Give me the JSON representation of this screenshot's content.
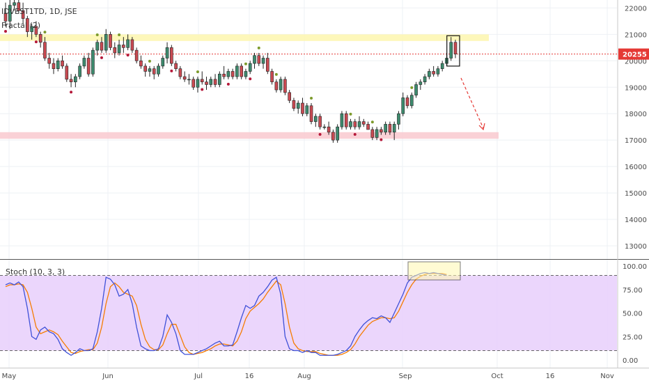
{
  "chart_data": [
    {
      "type": "candlestick",
      "title": "IDVEST1TD, 1D, JSE",
      "indicator_label": "Fractal (2)",
      "last_price": "20255",
      "y_axis": {
        "ylim": [
          12500,
          22300
        ],
        "ticks": [
          "22000",
          "21000",
          "20000",
          "19000",
          "18000",
          "17000",
          "16000",
          "15000",
          "14000",
          "13000"
        ]
      },
      "x_axis": {
        "ticks": [
          "May",
          "Jun",
          "Jul",
          "16",
          "Aug",
          "Sep",
          "Oct",
          "16",
          "Nov"
        ]
      },
      "resistance_zone": [
        20750,
        21000
      ],
      "support_zone": [
        17050,
        17300
      ],
      "price_line": 20255,
      "ohlc": [
        [
          21800,
          22200,
          21300,
          21500
        ],
        [
          21500,
          22300,
          21200,
          22100
        ],
        [
          22100,
          22400,
          21900,
          22200
        ],
        [
          22200,
          22300,
          21800,
          21900
        ],
        [
          21900,
          22200,
          21400,
          21600
        ],
        [
          21600,
          21700,
          20900,
          21100
        ],
        [
          21100,
          21400,
          20800,
          21300
        ],
        [
          21300,
          21500,
          20900,
          21000
        ],
        [
          21000,
          21100,
          20500,
          20700
        ],
        [
          20700,
          20900,
          20000,
          20100
        ],
        [
          20100,
          20300,
          19700,
          19900
        ],
        [
          19900,
          20100,
          19500,
          19700
        ],
        [
          19700,
          20100,
          19600,
          20000
        ],
        [
          20000,
          20200,
          19700,
          19800
        ],
        [
          19800,
          19900,
          19200,
          19300
        ],
        [
          19300,
          19500,
          19000,
          19200
        ],
        [
          19200,
          19500,
          19000,
          19400
        ],
        [
          19400,
          19900,
          19300,
          19800
        ],
        [
          19800,
          20200,
          19700,
          20100
        ],
        [
          20100,
          20300,
          19400,
          19500
        ],
        [
          19500,
          20500,
          19400,
          20400
        ],
        [
          20400,
          20800,
          20200,
          20700
        ],
        [
          20700,
          20900,
          20300,
          20400
        ],
        [
          20400,
          21200,
          20300,
          21000
        ],
        [
          21000,
          21100,
          20400,
          20500
        ],
        [
          20500,
          20700,
          20100,
          20300
        ],
        [
          20300,
          20800,
          20200,
          20600
        ],
        [
          20600,
          20900,
          20300,
          20500
        ],
        [
          20500,
          21000,
          20400,
          20800
        ],
        [
          20800,
          20900,
          20300,
          20400
        ],
        [
          20400,
          20500,
          19900,
          20000
        ],
        [
          20000,
          20200,
          19700,
          19800
        ],
        [
          19800,
          19900,
          19400,
          19600
        ],
        [
          19600,
          19800,
          19400,
          19700
        ],
        [
          19700,
          19800,
          19300,
          19500
        ],
        [
          19500,
          19900,
          19400,
          19800
        ],
        [
          19800,
          20200,
          19700,
          20100
        ],
        [
          20100,
          20700,
          19900,
          20500
        ],
        [
          20500,
          20600,
          19800,
          19900
        ],
        [
          19900,
          20000,
          19600,
          19700
        ],
        [
          19700,
          19800,
          19300,
          19400
        ],
        [
          19400,
          19600,
          19200,
          19300
        ],
        [
          19300,
          19500,
          19100,
          19300
        ],
        [
          19300,
          19400,
          18900,
          19000
        ],
        [
          19000,
          19400,
          18800,
          19300
        ],
        [
          19300,
          19600,
          19100,
          19200
        ],
        [
          19200,
          19400,
          18900,
          19100
        ],
        [
          19100,
          19400,
          19000,
          19300
        ],
        [
          19300,
          19500,
          19000,
          19100
        ],
        [
          19100,
          19600,
          19000,
          19500
        ],
        [
          19500,
          19800,
          19300,
          19400
        ],
        [
          19400,
          19700,
          19300,
          19600
        ],
        [
          19600,
          19700,
          19300,
          19400
        ],
        [
          19400,
          19900,
          19300,
          19800
        ],
        [
          19800,
          19900,
          19300,
          19400
        ],
        [
          19400,
          19700,
          19300,
          19600
        ],
        [
          19600,
          20000,
          19500,
          19900
        ],
        [
          19900,
          20300,
          19700,
          20200
        ],
        [
          20200,
          20300,
          19800,
          19900
        ],
        [
          19900,
          20200,
          19700,
          20100
        ],
        [
          20100,
          20300,
          19500,
          19600
        ],
        [
          19600,
          19700,
          19100,
          19200
        ],
        [
          19200,
          19300,
          18800,
          18900
        ],
        [
          18900,
          19400,
          18800,
          19300
        ],
        [
          19300,
          19400,
          18700,
          18800
        ],
        [
          18800,
          18900,
          18400,
          18500
        ],
        [
          18500,
          18600,
          18100,
          18200
        ],
        [
          18200,
          18500,
          18000,
          18400
        ],
        [
          18400,
          18600,
          17900,
          18000
        ],
        [
          18000,
          18400,
          17900,
          18300
        ],
        [
          18300,
          18400,
          17600,
          17700
        ],
        [
          17700,
          18000,
          17500,
          17900
        ],
        [
          17900,
          18000,
          17400,
          17500
        ],
        [
          17500,
          17600,
          17400,
          17500
        ],
        [
          17500,
          17700,
          17200,
          17300
        ],
        [
          17300,
          17400,
          16900,
          17000
        ],
        [
          17000,
          17600,
          16900,
          17500
        ],
        [
          17500,
          18100,
          17400,
          18000
        ],
        [
          18000,
          18100,
          17400,
          17500
        ],
        [
          17500,
          17800,
          17400,
          17700
        ],
        [
          17700,
          17800,
          17400,
          17500
        ],
        [
          17500,
          17900,
          17400,
          17700
        ],
        [
          17700,
          17800,
          17500,
          17600
        ],
        [
          17600,
          17700,
          17400,
          17400
        ],
        [
          17400,
          17500,
          17000,
          17100
        ],
        [
          17100,
          17500,
          17000,
          17400
        ],
        [
          17400,
          17500,
          17200,
          17300
        ],
        [
          17300,
          17700,
          17200,
          17600
        ],
        [
          17600,
          17700,
          17200,
          17300
        ],
        [
          17300,
          17700,
          17000,
          17600
        ],
        [
          17600,
          18100,
          17400,
          18000
        ],
        [
          18000,
          18800,
          17900,
          18600
        ],
        [
          18600,
          18700,
          18200,
          18300
        ],
        [
          18300,
          18800,
          18200,
          18700
        ],
        [
          18700,
          19200,
          18600,
          19100
        ],
        [
          19100,
          19300,
          18900,
          19200
        ],
        [
          19200,
          19500,
          19100,
          19400
        ],
        [
          19400,
          19700,
          19300,
          19600
        ],
        [
          19600,
          19800,
          19400,
          19500
        ],
        [
          19500,
          19800,
          19400,
          19700
        ],
        [
          19700,
          20000,
          19600,
          19900
        ],
        [
          19900,
          20300,
          19800,
          20100
        ],
        [
          20100,
          20900,
          20000,
          20700
        ],
        [
          20700,
          20800,
          20100,
          20255
        ]
      ],
      "stoch_title": "Stoch (10, 3, 3)",
      "stoch_ylim": [
        0,
        100
      ],
      "stoch_ticks": [
        "100.00",
        "75.00",
        "50.00",
        "25.00",
        "0.00"
      ],
      "stoch_bands": [
        20,
        80
      ],
      "stoch_k": [
        80,
        82,
        80,
        83,
        78,
        55,
        25,
        22,
        32,
        35,
        30,
        28,
        22,
        12,
        8,
        5,
        8,
        12,
        10,
        10,
        12,
        30,
        55,
        88,
        86,
        80,
        68,
        70,
        75,
        60,
        35,
        15,
        12,
        10,
        10,
        12,
        25,
        48,
        40,
        28,
        10,
        6,
        6,
        6,
        8,
        10,
        12,
        15,
        18,
        20,
        15,
        15,
        16,
        30,
        45,
        58,
        55,
        58,
        68,
        72,
        78,
        85,
        88,
        70,
        25,
        12,
        10,
        10,
        8,
        10,
        8,
        8,
        5,
        5,
        5,
        5,
        6,
        8,
        10,
        15,
        25,
        32,
        38,
        42,
        45,
        44,
        47,
        45,
        40,
        50,
        60,
        70,
        82,
        88,
        90,
        92,
        93,
        92,
        93,
        92,
        91,
        90
      ],
      "stoch_d": [
        78,
        80,
        80,
        81,
        80,
        72,
        55,
        35,
        28,
        30,
        32,
        30,
        27,
        20,
        14,
        8,
        7,
        9,
        10,
        11,
        11,
        18,
        35,
        60,
        78,
        82,
        78,
        72,
        70,
        68,
        58,
        38,
        22,
        14,
        11,
        11,
        16,
        28,
        38,
        38,
        26,
        14,
        8,
        6,
        7,
        8,
        10,
        12,
        15,
        17,
        17,
        16,
        15,
        20,
        30,
        44,
        52,
        56,
        60,
        65,
        72,
        78,
        84,
        80,
        60,
        35,
        18,
        12,
        10,
        9,
        9,
        9,
        7,
        6,
        5,
        5,
        5,
        6,
        8,
        11,
        17,
        25,
        31,
        37,
        41,
        43,
        45,
        45,
        44,
        45,
        52,
        62,
        72,
        80,
        86,
        89,
        91,
        92,
        92,
        92,
        92,
        91
      ],
      "annotation_box_note": "price box on last two candles; stoch box top-right; dashed arrow down"
    }
  ]
}
